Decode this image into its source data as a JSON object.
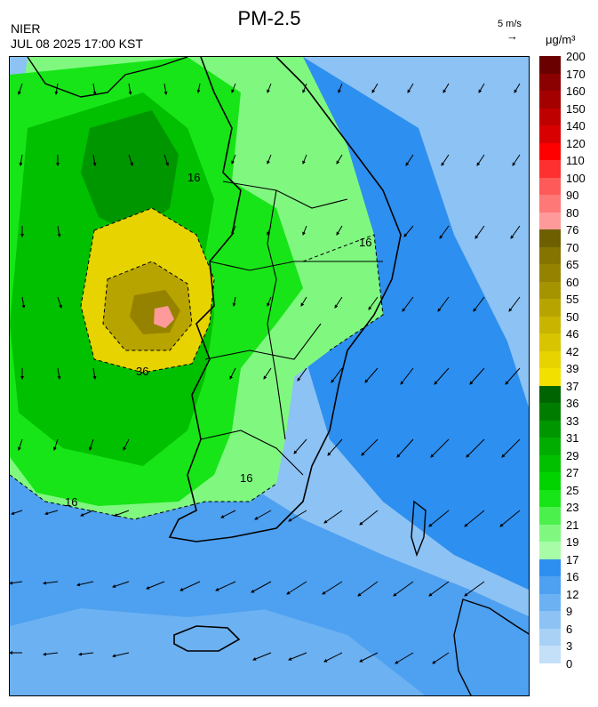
{
  "header": {
    "org": "NIER",
    "timestamp": "JUL 08 2025 17:00 KST",
    "title": "PM-2.5",
    "wind_ref": "5 m/s",
    "unit": "μg/m³"
  },
  "legend": {
    "ticks": [
      "200",
      "170",
      "160",
      "150",
      "140",
      "120",
      "110",
      "100",
      "90",
      "80",
      "76",
      "70",
      "65",
      "60",
      "55",
      "50",
      "46",
      "42",
      "39",
      "37",
      "36",
      "33",
      "31",
      "29",
      "27",
      "25",
      "23",
      "21",
      "19",
      "17",
      "16",
      "12",
      "9",
      "6",
      "3",
      "0"
    ],
    "colors": [
      "#6b0000",
      "#8b0000",
      "#a40000",
      "#bf0000",
      "#d80000",
      "#ff0000",
      "#ff3030",
      "#ff5a5a",
      "#ff7878",
      "#ff9a9a",
      "#6e6000",
      "#857400",
      "#958300",
      "#a69300",
      "#b8a400",
      "#c9b400",
      "#d8c400",
      "#e6d300",
      "#f2e000",
      "#006400",
      "#007d00",
      "#009600",
      "#00ad00",
      "#00c000",
      "#00d300",
      "#17e517",
      "#4cf04c",
      "#80f880",
      "#a8fca8",
      "#2d8fef",
      "#4ea0f0",
      "#6cb1f2",
      "#8cc2f4",
      "#a9d1f6",
      "#c4e0f8"
    ]
  },
  "map": {
    "contour_labels": [
      "36",
      "16",
      "16",
      "16",
      "16"
    ]
  }
}
